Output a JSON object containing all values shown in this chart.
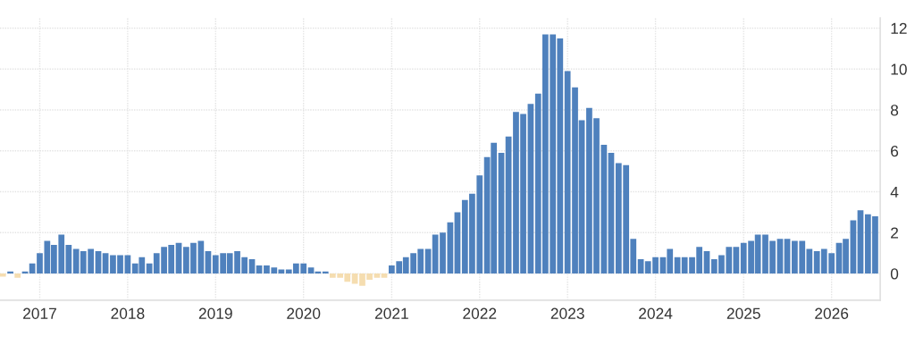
{
  "chart_data": {
    "type": "bar",
    "x": [
      "2016-08",
      "2016-09",
      "2016-10",
      "2016-11",
      "2016-12",
      "2017-01",
      "2017-02",
      "2017-03",
      "2017-04",
      "2017-05",
      "2017-06",
      "2017-07",
      "2017-08",
      "2017-09",
      "2017-10",
      "2017-11",
      "2017-12",
      "2018-01",
      "2018-02",
      "2018-03",
      "2018-04",
      "2018-05",
      "2018-06",
      "2018-07",
      "2018-08",
      "2018-09",
      "2018-10",
      "2018-11",
      "2018-12",
      "2019-01",
      "2019-02",
      "2019-03",
      "2019-04",
      "2019-05",
      "2019-06",
      "2019-07",
      "2019-08",
      "2019-09",
      "2019-10",
      "2019-11",
      "2019-12",
      "2020-01",
      "2020-02",
      "2020-03",
      "2020-04",
      "2020-05",
      "2020-06",
      "2020-07",
      "2020-08",
      "2020-09",
      "2020-10",
      "2020-11",
      "2020-12",
      "2021-01",
      "2021-02",
      "2021-03",
      "2021-04",
      "2021-05",
      "2021-06",
      "2021-07",
      "2021-08",
      "2021-09",
      "2021-10",
      "2021-11",
      "2021-12",
      "2022-01",
      "2022-02",
      "2022-03",
      "2022-04",
      "2022-05",
      "2022-06",
      "2022-07",
      "2022-08",
      "2022-09",
      "2022-10",
      "2022-11",
      "2022-12",
      "2023-01",
      "2023-02",
      "2023-03",
      "2023-04",
      "2023-05",
      "2023-06",
      "2023-07",
      "2023-08",
      "2023-09",
      "2023-10",
      "2023-11",
      "2023-12",
      "2024-01",
      "2024-02",
      "2024-03",
      "2024-04",
      "2024-05",
      "2024-06",
      "2024-07",
      "2024-08",
      "2024-09",
      "2024-10",
      "2024-11",
      "2024-12",
      "2025-01",
      "2025-02",
      "2025-03",
      "2025-04",
      "2025-05",
      "2025-06",
      "2025-07",
      "2025-08",
      "2025-09",
      "2025-10",
      "2025-11",
      "2025-12",
      "2026-01",
      "2026-02",
      "2026-03",
      "2026-04",
      "2026-05",
      "2026-06",
      "2026-07"
    ],
    "values": [
      -0.15,
      0.1,
      -0.2,
      0.1,
      0.5,
      1.0,
      1.6,
      1.4,
      1.9,
      1.4,
      1.2,
      1.1,
      1.2,
      1.1,
      1.0,
      0.9,
      0.9,
      0.9,
      0.5,
      0.8,
      0.5,
      1.0,
      1.3,
      1.4,
      1.5,
      1.3,
      1.5,
      1.6,
      1.1,
      0.9,
      1.0,
      1.0,
      1.1,
      0.8,
      0.7,
      0.4,
      0.4,
      0.3,
      0.2,
      0.2,
      0.5,
      0.5,
      0.3,
      0.1,
      0.1,
      -0.2,
      -0.2,
      -0.4,
      -0.5,
      -0.6,
      -0.3,
      -0.2,
      -0.2,
      0.4,
      0.6,
      0.8,
      1.0,
      1.2,
      1.2,
      1.9,
      2.0,
      2.5,
      3.0,
      3.6,
      3.9,
      4.8,
      5.7,
      6.4,
      5.9,
      6.7,
      7.9,
      7.8,
      8.3,
      8.8,
      11.7,
      11.7,
      11.5,
      9.9,
      9.1,
      7.5,
      8.1,
      7.6,
      6.3,
      5.9,
      5.4,
      5.3,
      1.7,
      0.7,
      0.6,
      0.8,
      0.8,
      1.2,
      0.8,
      0.8,
      0.8,
      1.3,
      1.1,
      0.7,
      0.9,
      1.3,
      1.3,
      1.5,
      1.6,
      1.9,
      1.9,
      1.6,
      1.7,
      1.7,
      1.6,
      1.6,
      1.2,
      1.1,
      1.2,
      1.0,
      1.5,
      1.7,
      2.6,
      3.1,
      2.9,
      2.8
    ],
    "colors": [
      "#f5ddb0",
      "#4f81bd",
      "#f5ddb0",
      "#4f81bd",
      "#4f81bd",
      "#4f81bd",
      "#4f81bd",
      "#4f81bd",
      "#4f81bd",
      "#4f81bd",
      "#4f81bd",
      "#4f81bd",
      "#4f81bd",
      "#4f81bd",
      "#4f81bd",
      "#4f81bd",
      "#4f81bd",
      "#4f81bd",
      "#4f81bd",
      "#4f81bd",
      "#4f81bd",
      "#4f81bd",
      "#4f81bd",
      "#4f81bd",
      "#4f81bd",
      "#4f81bd",
      "#4f81bd",
      "#4f81bd",
      "#4f81bd",
      "#4f81bd",
      "#4f81bd",
      "#4f81bd",
      "#4f81bd",
      "#4f81bd",
      "#4f81bd",
      "#4f81bd",
      "#4f81bd",
      "#4f81bd",
      "#4f81bd",
      "#4f81bd",
      "#4f81bd",
      "#4f81bd",
      "#4f81bd",
      "#4f81bd",
      "#4f81bd",
      "#f5ddb0",
      "#f5ddb0",
      "#f5ddb0",
      "#f5ddb0",
      "#f5ddb0",
      "#f5ddb0",
      "#f5ddb0",
      "#f5ddb0",
      "#4f81bd",
      "#4f81bd",
      "#4f81bd",
      "#4f81bd",
      "#4f81bd",
      "#4f81bd",
      "#4f81bd",
      "#4f81bd",
      "#4f81bd",
      "#4f81bd",
      "#4f81bd",
      "#4f81bd",
      "#4f81bd",
      "#4f81bd",
      "#4f81bd",
      "#4f81bd",
      "#4f81bd",
      "#4f81bd",
      "#4f81bd",
      "#4f81bd",
      "#4f81bd",
      "#4f81bd",
      "#4f81bd",
      "#4f81bd",
      "#4f81bd",
      "#4f81bd",
      "#4f81bd",
      "#4f81bd",
      "#4f81bd",
      "#4f81bd",
      "#4f81bd",
      "#4f81bd",
      "#4f81bd",
      "#4f81bd",
      "#4f81bd",
      "#4f81bd",
      "#4f81bd",
      "#4f81bd",
      "#4f81bd",
      "#4f81bd",
      "#4f81bd",
      "#4f81bd",
      "#4f81bd",
      "#4f81bd",
      "#4f81bd",
      "#4f81bd",
      "#4f81bd",
      "#4f81bd",
      "#4f81bd",
      "#4f81bd",
      "#4f81bd",
      "#4f81bd",
      "#4f81bd",
      "#4f81bd",
      "#4f81bd",
      "#4f81bd",
      "#4f81bd",
      "#4f81bd",
      "#4f81bd",
      "#4f81bd",
      "#4f81bd",
      "#4f81bd",
      "#4f81bd",
      "#4f81bd",
      "#4f81bd",
      "#4f81bd",
      "#4f81bd"
    ],
    "xlim": [
      "2016-07-20",
      "2026-07-22"
    ],
    "xticks": [
      {
        "value": "2017-01",
        "label": "2017"
      },
      {
        "value": "2018-01",
        "label": "2018"
      },
      {
        "value": "2019-01",
        "label": "2019"
      },
      {
        "value": "2020-01",
        "label": "2020"
      },
      {
        "value": "2021-01",
        "label": "2021"
      },
      {
        "value": "2022-01",
        "label": "2022"
      },
      {
        "value": "2023-01",
        "label": "2023"
      },
      {
        "value": "2024-01",
        "label": "2024"
      },
      {
        "value": "2025-01",
        "label": "2025"
      },
      {
        "value": "2026-01",
        "label": "2026"
      }
    ],
    "ylim": [
      -1.3,
      12.5
    ],
    "yticks": [
      0,
      2,
      4,
      6,
      8,
      10,
      12
    ],
    "grid": true,
    "legend": false
  }
}
